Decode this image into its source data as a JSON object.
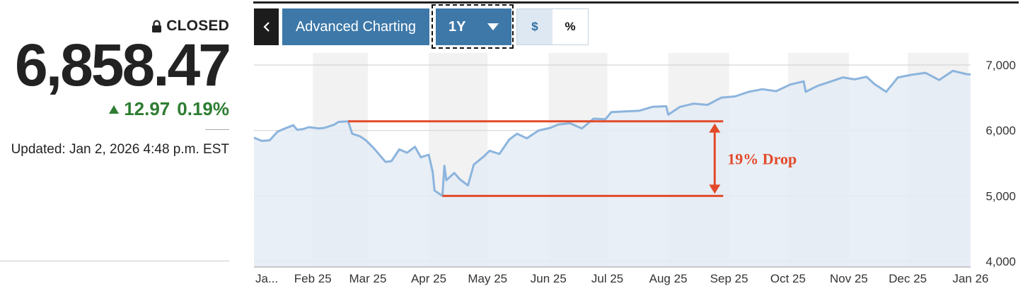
{
  "quote": {
    "status": "CLOSED",
    "price": "6,858.47",
    "change": "12.97",
    "change_pct": "0.19%",
    "updated": "Updated: Jan 2, 2026 4:48 p.m. EST",
    "status_icon": "lock-icon",
    "change_icon": "up-arrow-icon",
    "change_color": "#2e7d32"
  },
  "toolbar": {
    "back_label": "back",
    "advanced_label": "Advanced Charting",
    "range_label": "1Y",
    "toggle_dollar": "$",
    "toggle_percent": "%",
    "accent": "#3d78a8"
  },
  "chart_data": {
    "type": "area",
    "y_ticks": [
      "7,000",
      "6,000",
      "5,000",
      "4,000"
    ],
    "y_tick_values": [
      7000,
      6000,
      5000,
      4000
    ],
    "ylim": [
      4000,
      7180
    ],
    "x_ticks": [
      "Ja...",
      "Feb 25",
      "Mar 25",
      "Apr 25",
      "May 25",
      "Jun 25",
      "Jul 25",
      "Aug 25",
      "Sep 25",
      "Oct 25",
      "Nov 25",
      "Dec 25",
      "Jan 26"
    ],
    "x_dates": [
      "2025-01-02",
      "2025-01-06",
      "2025-01-10",
      "2025-01-14",
      "2025-01-17",
      "2025-01-22",
      "2025-01-24",
      "2025-01-27",
      "2025-01-30",
      "2025-02-04",
      "2025-02-07",
      "2025-02-12",
      "2025-02-14",
      "2025-02-19",
      "2025-02-21",
      "2025-02-25",
      "2025-02-28",
      "2025-03-04",
      "2025-03-06",
      "2025-03-10",
      "2025-03-13",
      "2025-03-17",
      "2025-03-21",
      "2025-03-25",
      "2025-03-28",
      "2025-04-01",
      "2025-04-03",
      "2025-04-04",
      "2025-04-07",
      "2025-04-08",
      "2025-04-09",
      "2025-04-10",
      "2025-04-14",
      "2025-04-17",
      "2025-04-21",
      "2025-04-24",
      "2025-04-29",
      "2025-05-02",
      "2025-05-07",
      "2025-05-12",
      "2025-05-16",
      "2025-05-21",
      "2025-05-27",
      "2025-06-02",
      "2025-06-06",
      "2025-06-12",
      "2025-06-18",
      "2025-06-24",
      "2025-06-30",
      "2025-07-03",
      "2025-07-10",
      "2025-07-17",
      "2025-07-24",
      "2025-07-31",
      "2025-08-01",
      "2025-08-07",
      "2025-08-14",
      "2025-08-21",
      "2025-08-28",
      "2025-09-04",
      "2025-09-11",
      "2025-09-18",
      "2025-09-25",
      "2025-10-02",
      "2025-10-09",
      "2025-10-10",
      "2025-10-16",
      "2025-10-23",
      "2025-10-29",
      "2025-11-04",
      "2025-11-10",
      "2025-11-14",
      "2025-11-20",
      "2025-11-26",
      "2025-12-03",
      "2025-12-10",
      "2025-12-17",
      "2025-12-24",
      "2025-12-31",
      "2026-01-02"
    ],
    "series": [
      {
        "values": [
          5890,
          5840,
          5850,
          5980,
          6020,
          6080,
          6010,
          6020,
          6050,
          6030,
          6040,
          6090,
          6130,
          6140,
          5950,
          5910,
          5850,
          5730,
          5660,
          5520,
          5530,
          5710,
          5660,
          5750,
          5590,
          5630,
          5370,
          5080,
          5020,
          5000,
          5460,
          5240,
          5350,
          5250,
          5160,
          5480,
          5600,
          5690,
          5640,
          5860,
          5950,
          5880,
          6000,
          6040,
          6090,
          6110,
          6030,
          6180,
          6170,
          6280,
          6290,
          6300,
          6360,
          6370,
          6240,
          6360,
          6410,
          6390,
          6500,
          6520,
          6590,
          6630,
          6600,
          6700,
          6750,
          6590,
          6680,
          6750,
          6810,
          6780,
          6820,
          6710,
          6590,
          6810,
          6850,
          6880,
          6770,
          6910,
          6860,
          6858
        ]
      }
    ],
    "annotation": {
      "label": "19% Drop",
      "high": 6140,
      "low": 5000,
      "high_start": "2025-02-19",
      "low_start": "2025-04-08",
      "end": "2025-08-29"
    },
    "line_color": "#8cb4dd",
    "fill_color": "#e4ecf4",
    "annotation_color": "#e34a2a",
    "grid": true
  }
}
